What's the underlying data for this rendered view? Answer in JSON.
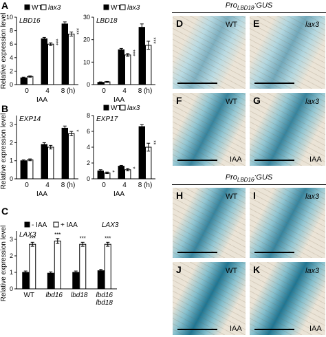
{
  "panel_letters": {
    "A": "A",
    "B": "B",
    "C": "C",
    "D": "D",
    "E": "E",
    "F": "F",
    "G": "G",
    "H": "H",
    "I": "I",
    "J": "J",
    "K": "K"
  },
  "ylabel": "Relative expression level",
  "legend": {
    "wt": "WT",
    "lax3": "lax3",
    "minus_iaa": "- IAA",
    "plus_iaa": "+ IAA"
  },
  "headers": {
    "lbd18": {
      "pre": "Pro",
      "sub": "LBD18",
      "post": ":GUS"
    },
    "lbd16": {
      "pre": "Pro",
      "sub": "LBD16",
      "post": ":GUS"
    }
  },
  "image_panels": [
    {
      "letter": "D",
      "genotype": "WT",
      "treatment": ""
    },
    {
      "letter": "E",
      "genotype": "lax3",
      "treatment": ""
    },
    {
      "letter": "F",
      "genotype": "WT",
      "treatment": "IAA"
    },
    {
      "letter": "G",
      "genotype": "lax3",
      "treatment": "IAA"
    },
    {
      "letter": "H",
      "genotype": "WT",
      "treatment": ""
    },
    {
      "letter": "I",
      "genotype": "lax3",
      "treatment": ""
    },
    {
      "letter": "J",
      "genotype": "WT",
      "treatment": "IAA"
    },
    {
      "letter": "K",
      "genotype": "lax3",
      "treatment": "IAA"
    }
  ],
  "colors": {
    "black_bar": "#000000",
    "white_bar": "#ffffff",
    "stain": "#2a8fa8"
  },
  "chart_data": [
    {
      "id": "lbd16",
      "type": "bar",
      "title": "LBD16",
      "xlabel": "IAA",
      "categories": [
        "0",
        "4",
        "8 (h)"
      ],
      "ylim": [
        0,
        10
      ],
      "series": [
        {
          "name": "WT",
          "values": [
            1.0,
            6.8,
            9.0
          ],
          "err": [
            0.1,
            0.2,
            0.3
          ]
        },
        {
          "name": "lax3",
          "values": [
            1.2,
            6.0,
            7.5
          ],
          "err": [
            0.1,
            0.2,
            0.3
          ]
        }
      ],
      "sig": [
        [
          "",
          ""
        ],
        [
          "",
          "***"
        ],
        [
          "",
          "***"
        ]
      ]
    },
    {
      "id": "lbd18",
      "type": "bar",
      "title": "LBD18",
      "xlabel": "IAA",
      "categories": [
        "0",
        "4",
        "8 (h)"
      ],
      "ylim": [
        0,
        30
      ],
      "series": [
        {
          "name": "WT",
          "values": [
            1.0,
            15.5,
            25.5
          ],
          "err": [
            0.2,
            0.6,
            1.5
          ]
        },
        {
          "name": "lax3",
          "values": [
            1.2,
            13.2,
            17.5
          ],
          "err": [
            0.2,
            0.6,
            1.8
          ]
        }
      ],
      "sig": [
        [
          "",
          ""
        ],
        [
          "",
          "***"
        ],
        [
          "",
          "***"
        ]
      ]
    },
    {
      "id": "exp14",
      "type": "bar",
      "title": "EXP14",
      "xlabel": "IAA",
      "categories": [
        "0",
        "4",
        "8 (h)"
      ],
      "ylim": [
        0,
        3.5
      ],
      "series": [
        {
          "name": "WT",
          "values": [
            1.0,
            1.9,
            2.8
          ],
          "err": [
            0.05,
            0.1,
            0.12
          ]
        },
        {
          "name": "lax3",
          "values": [
            1.05,
            1.75,
            2.5
          ],
          "err": [
            0.05,
            0.1,
            0.12
          ]
        }
      ],
      "sig": [
        [
          "",
          ""
        ],
        [
          "",
          ""
        ],
        [
          "",
          "*"
        ]
      ]
    },
    {
      "id": "exp17",
      "type": "bar",
      "title": "EXP17",
      "xlabel": "IAA",
      "categories": [
        "0",
        "4",
        "8 (h)"
      ],
      "ylim": [
        0,
        8
      ],
      "series": [
        {
          "name": "WT",
          "values": [
            1.0,
            1.6,
            6.6
          ],
          "err": [
            0.15,
            0.1,
            0.25
          ]
        },
        {
          "name": "lax3",
          "values": [
            0.75,
            1.15,
            4.0
          ],
          "err": [
            0.1,
            0.15,
            0.5
          ]
        }
      ],
      "sig": [
        [
          "",
          "*"
        ],
        [
          "",
          "*"
        ],
        [
          "",
          "**"
        ]
      ]
    },
    {
      "id": "lax3",
      "type": "bar",
      "title": "LAX3",
      "xlabel": "",
      "categories": [
        "WT",
        "lbd16",
        "lbd18",
        "lbd16 lbd18"
      ],
      "ylim": [
        0,
        3.5
      ],
      "series": [
        {
          "name": "- IAA",
          "values": [
            1.0,
            0.95,
            1.0,
            1.1
          ],
          "err": [
            0.08,
            0.08,
            0.08,
            0.08
          ]
        },
        {
          "name": "+ IAA",
          "values": [
            2.7,
            2.9,
            2.7,
            2.7
          ],
          "err": [
            0.12,
            0.15,
            0.12,
            0.12
          ]
        }
      ],
      "sig": [
        [
          "",
          "***"
        ],
        [
          "",
          "***"
        ],
        [
          "",
          "***"
        ],
        [
          "",
          "***"
        ]
      ]
    }
  ]
}
